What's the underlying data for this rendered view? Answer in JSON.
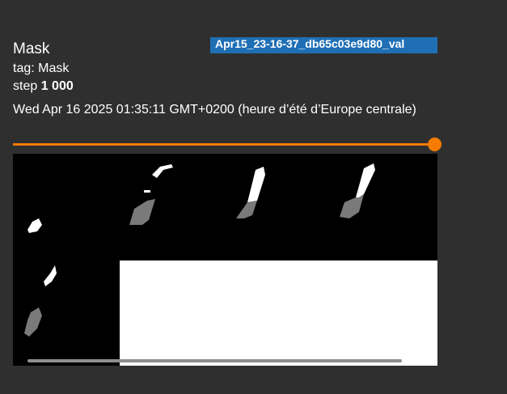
{
  "card": {
    "run_name": "Apr15_23-16-37_db65c03e9d80_val",
    "title": "Mask",
    "tag_label": "tag:",
    "tag_value": "Mask",
    "step_label": "step",
    "step_value": "1 000",
    "timestamp": "Wed Apr 16 2025 01:35:11 GMT+0200 (heure d’été d’Europe centrale)",
    "step_slider_fraction": 1.0
  },
  "colors": {
    "background": "#2f2f2f",
    "run_badge": "#1f6fb5",
    "slider_accent": "#f57c00",
    "mask_foreground": "#ffffff",
    "mask_prediction": "#7a7a7a",
    "image_background": "#000000"
  }
}
